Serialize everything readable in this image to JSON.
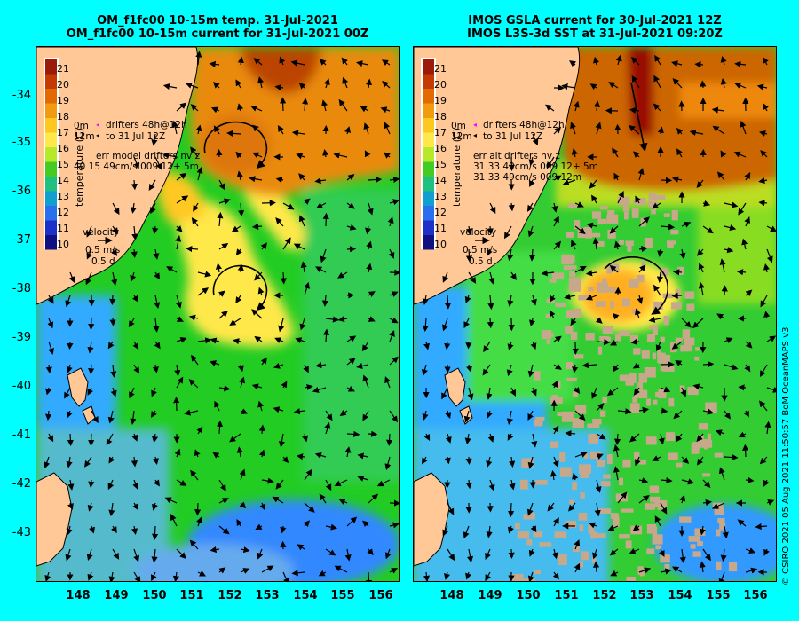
{
  "left": {
    "title_line1": "OM_f1fc00 10-15m temp. 31-Jul-2021",
    "title_line2": "OM_f1fc00 10-15m current for 31-Jul-2021 00Z",
    "legend": {
      "drifters_line1": "drifters 48h@12h",
      "drifters_line2": "to 31 Jul 12Z",
      "depth_0": "0m",
      "depth_12": "12m",
      "err_line1": "err model drifters nv z",
      "err_line2": "40 15 49cm/s 009 12+ 5m"
    }
  },
  "right": {
    "title_line1": "IMOS GSLA current for 30-Jul-2021 12Z",
    "title_line2": "IMOS L3S-3d SST at 31-Jul-2021 09:20Z",
    "legend": {
      "drifters_line1": "drifters 48h@12h",
      "drifters_line2": "to 31 Jul 12Z",
      "depth_0": "0m",
      "depth_12": "12m",
      "err_line1": "err alt drifters nv z",
      "err_line2": "31 33 49cm/s 009 12+ 5m",
      "err_line3": "31 33 49cm/s 009 12m"
    }
  },
  "colorbar": {
    "label": "temperature (C)",
    "ticks": [
      "21",
      "20",
      "19",
      "18",
      "17",
      "16",
      "15",
      "14",
      "13",
      "12",
      "11",
      "10"
    ]
  },
  "velocity_key": {
    "label": "velocity",
    "speed": "0.5 m/s",
    "duration": "0.5 d"
  },
  "axes": {
    "lat_labels": [
      "-34",
      "-35",
      "-36",
      "-37",
      "-38",
      "-39",
      "-40",
      "-41",
      "-42",
      "-43"
    ],
    "lon_labels": [
      "148",
      "149",
      "150",
      "151",
      "152",
      "153",
      "154",
      "155",
      "156"
    ]
  },
  "credit": "© CSIRO 2021   05 Aug 2021 11:50:57 BoM OceanMAPS v3",
  "colors": {
    "background": "#00ffff",
    "land": "#ffc896",
    "warm_eddy": "#ffe84a",
    "shelf_water": "#22cc22",
    "cold_coast": "#33aaff",
    "hot_north": "#cc5500",
    "cloud_mask": "#c8a88a"
  }
}
